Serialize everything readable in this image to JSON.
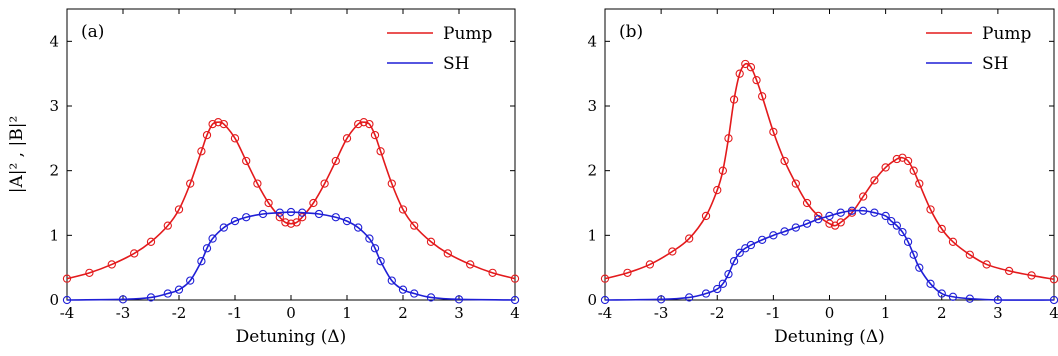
{
  "chart_data": [
    {
      "type": "line",
      "panel_label": "(a)",
      "xlabel": "Detuning (Δ)",
      "ylabel": "|A|² , |B|²",
      "xlim": [
        -4,
        4
      ],
      "ylim": [
        0,
        4.5
      ],
      "xticks": [
        "-4",
        "-3",
        "-2",
        "-1",
        "0",
        "1",
        "2",
        "3",
        "4"
      ],
      "yticks": [
        "0",
        "1",
        "2",
        "3",
        "4"
      ],
      "legend_position": "top-right",
      "series": [
        {
          "name": "Pump",
          "color": "#e31a1c",
          "x": [
            -4.0,
            -3.6,
            -3.2,
            -2.8,
            -2.5,
            -2.2,
            -2.0,
            -1.8,
            -1.6,
            -1.5,
            -1.4,
            -1.3,
            -1.2,
            -1.0,
            -0.8,
            -0.6,
            -0.4,
            -0.2,
            -0.1,
            0.0,
            0.1,
            0.2,
            0.4,
            0.6,
            0.8,
            1.0,
            1.2,
            1.3,
            1.4,
            1.5,
            1.6,
            1.8,
            2.0,
            2.2,
            2.5,
            2.8,
            3.2,
            3.6,
            4.0
          ],
          "y": [
            0.33,
            0.42,
            0.55,
            0.72,
            0.9,
            1.15,
            1.4,
            1.8,
            2.3,
            2.55,
            2.72,
            2.75,
            2.72,
            2.5,
            2.15,
            1.8,
            1.5,
            1.28,
            1.2,
            1.18,
            1.2,
            1.28,
            1.5,
            1.8,
            2.15,
            2.5,
            2.72,
            2.75,
            2.72,
            2.55,
            2.3,
            1.8,
            1.4,
            1.15,
            0.9,
            0.72,
            0.55,
            0.42,
            0.33
          ]
        },
        {
          "name": "SH",
          "color": "#1f1fd6",
          "x": [
            -4.0,
            -3.0,
            -2.5,
            -2.2,
            -2.0,
            -1.8,
            -1.6,
            -1.5,
            -1.4,
            -1.2,
            -1.0,
            -0.8,
            -0.5,
            -0.2,
            0.0,
            0.2,
            0.5,
            0.8,
            1.0,
            1.2,
            1.4,
            1.5,
            1.6,
            1.8,
            2.0,
            2.2,
            2.5,
            3.0,
            4.0
          ],
          "y": [
            0.0,
            0.01,
            0.04,
            0.1,
            0.16,
            0.3,
            0.6,
            0.8,
            0.95,
            1.12,
            1.22,
            1.28,
            1.33,
            1.35,
            1.36,
            1.35,
            1.33,
            1.28,
            1.22,
            1.12,
            0.95,
            0.8,
            0.6,
            0.3,
            0.16,
            0.1,
            0.04,
            0.01,
            0.0
          ]
        }
      ]
    },
    {
      "type": "line",
      "panel_label": "(b)",
      "xlabel": "Detuning (Δ)",
      "ylabel": "",
      "xlim": [
        -4,
        4
      ],
      "ylim": [
        0,
        4.5
      ],
      "xticks": [
        "-4",
        "-3",
        "-2",
        "-1",
        "0",
        "1",
        "2",
        "3",
        "4"
      ],
      "yticks": [
        "0",
        "1",
        "2",
        "3",
        "4"
      ],
      "legend_position": "top-right",
      "series": [
        {
          "name": "Pump",
          "color": "#e31a1c",
          "x": [
            -4.0,
            -3.6,
            -3.2,
            -2.8,
            -2.5,
            -2.2,
            -2.0,
            -1.9,
            -1.8,
            -1.7,
            -1.6,
            -1.5,
            -1.4,
            -1.3,
            -1.2,
            -1.0,
            -0.8,
            -0.6,
            -0.4,
            -0.2,
            0.0,
            0.1,
            0.2,
            0.4,
            0.6,
            0.8,
            1.0,
            1.2,
            1.3,
            1.4,
            1.5,
            1.6,
            1.8,
            2.0,
            2.2,
            2.5,
            2.8,
            3.2,
            3.6,
            4.0
          ],
          "y": [
            0.33,
            0.42,
            0.55,
            0.75,
            0.95,
            1.3,
            1.7,
            2.0,
            2.5,
            3.1,
            3.5,
            3.65,
            3.6,
            3.4,
            3.15,
            2.6,
            2.15,
            1.8,
            1.5,
            1.3,
            1.18,
            1.15,
            1.2,
            1.35,
            1.6,
            1.85,
            2.05,
            2.18,
            2.2,
            2.15,
            2.0,
            1.8,
            1.4,
            1.1,
            0.9,
            0.7,
            0.55,
            0.45,
            0.38,
            0.32
          ]
        },
        {
          "name": "SH",
          "color": "#1f1fd6",
          "x": [
            -4.0,
            -3.0,
            -2.5,
            -2.2,
            -2.0,
            -1.9,
            -1.8,
            -1.7,
            -1.6,
            -1.5,
            -1.4,
            -1.2,
            -1.0,
            -0.8,
            -0.6,
            -0.4,
            -0.2,
            0.0,
            0.2,
            0.4,
            0.6,
            0.8,
            1.0,
            1.1,
            1.2,
            1.3,
            1.4,
            1.5,
            1.6,
            1.8,
            2.0,
            2.2,
            2.5,
            3.0,
            4.0
          ],
          "y": [
            0.0,
            0.01,
            0.04,
            0.1,
            0.17,
            0.25,
            0.4,
            0.6,
            0.73,
            0.8,
            0.85,
            0.93,
            1.0,
            1.06,
            1.12,
            1.18,
            1.25,
            1.3,
            1.35,
            1.38,
            1.38,
            1.35,
            1.3,
            1.22,
            1.15,
            1.05,
            0.9,
            0.7,
            0.5,
            0.25,
            0.1,
            0.05,
            0.02,
            0.0,
            0.0
          ]
        }
      ]
    }
  ]
}
